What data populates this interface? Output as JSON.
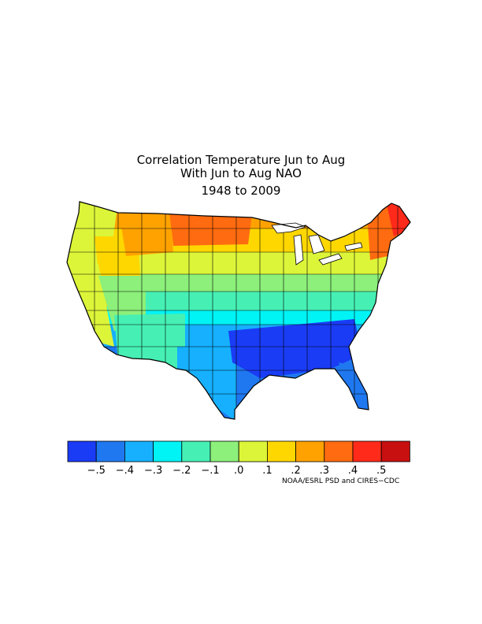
{
  "title": {
    "line1": "Correlation Temperature Jun to Aug",
    "line2": "With Jun to Aug NAO",
    "line3": "1948 to 2009"
  },
  "legend": {
    "colors": [
      "#1a3cf5",
      "#1f78f0",
      "#16b0ff",
      "#00f3f5",
      "#46f0b4",
      "#8cf07a",
      "#dcf539",
      "#ffd700",
      "#ffa200",
      "#ff6b10",
      "#ff2a1a",
      "#c81010"
    ],
    "labels": [
      "−.5",
      "−.4",
      "−.3",
      "−.2",
      "−.1",
      ".0",
      ".1",
      ".2",
      ".3",
      ".4",
      ".5"
    ]
  },
  "credit": "NOAA/ESRL PSD and CIRES−CDC",
  "map": {
    "region": "Contiguous United States climate divisions",
    "regions": [
      {
        "name": "Pacific Northwest coast",
        "color": "#dcf539"
      },
      {
        "name": "Inland Northwest",
        "color": "#ffd700"
      },
      {
        "name": "Northern Rockies",
        "color": "#ffa200"
      },
      {
        "name": "Northern Plains",
        "color": "#ff6b10"
      },
      {
        "name": "Upper Midwest",
        "color": "#ffa200"
      },
      {
        "name": "Great Lakes",
        "color": "#ffd700"
      },
      {
        "name": "New England",
        "color": "#ff6b10"
      },
      {
        "name": "Northern Maine",
        "color": "#ff2a1a"
      },
      {
        "name": "California",
        "color": "#dcf539"
      },
      {
        "name": "Great Basin",
        "color": "#8cf07a"
      },
      {
        "name": "Central Rockies",
        "color": "#dcf539"
      },
      {
        "name": "Central Plains",
        "color": "#8cf07a"
      },
      {
        "name": "Ohio Valley",
        "color": "#8cf07a"
      },
      {
        "name": "Mid Atlantic",
        "color": "#46f0b4"
      },
      {
        "name": "Southwest",
        "color": "#46f0b4"
      },
      {
        "name": "Southern Plains",
        "color": "#00f3f5"
      },
      {
        "name": "Texas",
        "color": "#16b0ff"
      },
      {
        "name": "Lower Mississippi",
        "color": "#1f78f0"
      },
      {
        "name": "Southeast",
        "color": "#1a3cf5"
      },
      {
        "name": "Florida",
        "color": "#1f78f0"
      }
    ]
  }
}
